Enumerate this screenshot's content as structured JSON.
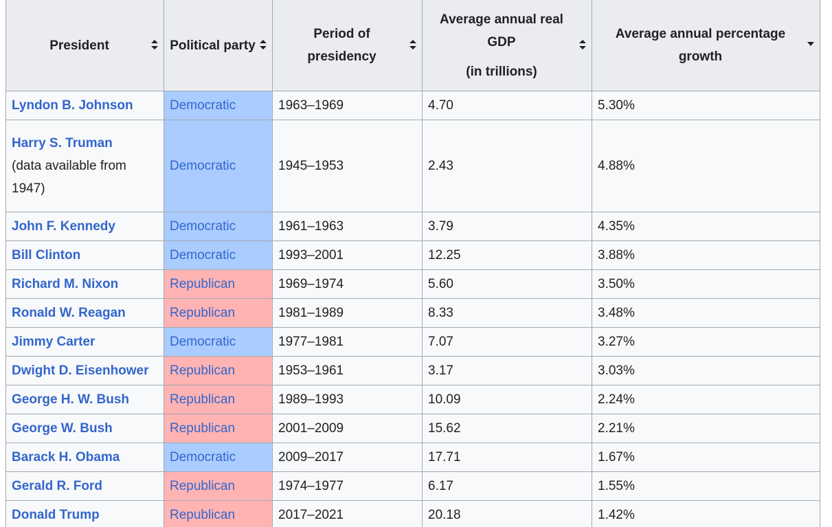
{
  "headers": {
    "president": "President",
    "party": "Political party",
    "period": "Period of presidency",
    "gdp_line1": "Average annual real",
    "gdp_line2": "GDP",
    "gdp_line3": "(in trillions)",
    "growth": "Average annual percentage growth"
  },
  "colors": {
    "democratic": "#aaccff",
    "republican": "#ffb3b3",
    "link": "#3366cc",
    "header_bg": "#eaecf0"
  },
  "rows": [
    {
      "president": "Lyndon B. Johnson",
      "note": "",
      "party": "Democratic",
      "period": "1963–1969",
      "gdp": "4.70",
      "growth": "5.30%"
    },
    {
      "president": "Harry S. Truman",
      "note": "(data available from 1947)",
      "party": "Democratic",
      "period": "1945–1953",
      "gdp": "2.43",
      "growth": "4.88%"
    },
    {
      "president": "John F. Kennedy",
      "note": "",
      "party": "Democratic",
      "period": "1961–1963",
      "gdp": "3.79",
      "growth": "4.35%"
    },
    {
      "president": "Bill Clinton",
      "note": "",
      "party": "Democratic",
      "period": "1993–2001",
      "gdp": "12.25",
      "growth": "3.88%"
    },
    {
      "president": "Richard M. Nixon",
      "note": "",
      "party": "Republican",
      "period": "1969–1974",
      "gdp": "5.60",
      "growth": "3.50%"
    },
    {
      "president": "Ronald W. Reagan",
      "note": "",
      "party": "Republican",
      "period": "1981–1989",
      "gdp": "8.33",
      "growth": "3.48%"
    },
    {
      "president": "Jimmy Carter",
      "note": "",
      "party": "Democratic",
      "period": "1977–1981",
      "gdp": "7.07",
      "growth": "3.27%"
    },
    {
      "president": "Dwight D. Eisenhower",
      "note": "",
      "party": "Republican",
      "period": "1953–1961",
      "gdp": "3.17",
      "growth": "3.03%"
    },
    {
      "president": "George H. W. Bush",
      "note": "",
      "party": "Republican",
      "period": "1989–1993",
      "gdp": "10.09",
      "growth": "2.24%"
    },
    {
      "president": "George W. Bush",
      "note": "",
      "party": "Republican",
      "period": "2001–2009",
      "gdp": "15.62",
      "growth": "2.21%"
    },
    {
      "president": "Barack H. Obama",
      "note": "",
      "party": "Democratic",
      "period": "2009–2017",
      "gdp": "17.71",
      "growth": "1.67%"
    },
    {
      "president": "Gerald R. Ford",
      "note": "",
      "party": "Republican",
      "period": "1974–1977",
      "gdp": "6.17",
      "growth": "1.55%"
    },
    {
      "president": "Donald Trump",
      "note": "",
      "party": "Republican",
      "period": "2017–2021",
      "gdp": "20.18",
      "growth": "1.42%"
    }
  ]
}
